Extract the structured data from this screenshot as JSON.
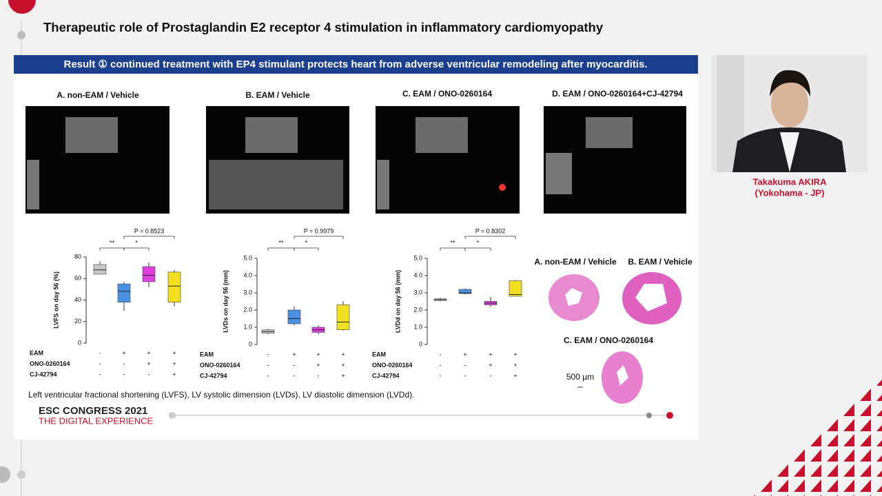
{
  "header": {
    "title": "Therapeutic role of Prostaglandin E2 receptor 4 stimulation in inflammatory cardiomyopathy"
  },
  "slide": {
    "banner": "Result ① continued treatment with EP4 stimulant protects heart from adverse ventricular remodeling after myocarditis.",
    "echo_labels": [
      "A. non-EAM / Vehicle",
      "B. EAM / Vehicle",
      "C. EAM / ONO-0260164",
      "D. EAM / ONO-0260164+CJ-42794"
    ],
    "histology_labels": [
      "A. non-EAM / Vehicle",
      "B. EAM / Vehicle",
      "C. EAM / ONO-0260164"
    ],
    "scale_bar": "500 µm",
    "footnote": "Left ventricular fractional shortening (LVFS), LV systolic dimension (LVDs), LV diastolic dimension (LVDd).",
    "congress": "ESC CONGRESS 2021",
    "congress_sub": "THE DIGITAL EXPERIENCE"
  },
  "speaker": {
    "name": "Takakuma AKIRA",
    "affiliation": "(Yokohama - JP)"
  },
  "chart_data": [
    {
      "type": "box",
      "y_label": "LVFS on day 56 (%)",
      "ylim": [
        0,
        80
      ],
      "yticks": [
        0,
        20,
        40,
        60,
        80
      ],
      "boxes": [
        {
          "color": "#c8c8c8",
          "min": 64,
          "q1": 64,
          "median": 68,
          "q3": 73,
          "max": 76
        },
        {
          "color": "#4a90e2",
          "min": 30,
          "q1": 38,
          "median": 48,
          "q3": 55,
          "max": 57
        },
        {
          "color": "#e040e0",
          "min": 52,
          "q1": 57,
          "median": 63,
          "q3": 71,
          "max": 75
        },
        {
          "color": "#f0e020",
          "min": 34,
          "q1": 38,
          "median": 53,
          "q3": 66,
          "max": 68
        }
      ],
      "annotations": [
        "**",
        "*",
        "P = 0.8523"
      ],
      "treatments": [
        {
          "name": "EAM",
          "marks": [
            "-",
            "+",
            "+",
            "+"
          ]
        },
        {
          "name": "ONO-0260164",
          "marks": [
            "-",
            "-",
            "+",
            "+"
          ]
        },
        {
          "name": "CJ-42794",
          "marks": [
            "-",
            "-",
            "-",
            "+"
          ]
        }
      ]
    },
    {
      "type": "box",
      "y_label": "LVDs on day 56 (mm)",
      "ylim": [
        0,
        5
      ],
      "yticks": [
        0,
        {
          "value": 1,
          "label": "1.0"
        },
        {
          "value": 2,
          "label": "2.0"
        },
        {
          "value": 3,
          "label": "3.0"
        },
        {
          "value": 4,
          "label": "4.0"
        },
        {
          "value": 5,
          "label": "5.0"
        }
      ],
      "boxes": [
        {
          "color": "#c8c8c8",
          "min": 0.6,
          "q1": 0.65,
          "median": 0.75,
          "q3": 0.85,
          "max": 0.9
        },
        {
          "color": "#4a90e2",
          "min": 1.1,
          "q1": 1.2,
          "median": 1.5,
          "q3": 2.0,
          "max": 2.2
        },
        {
          "color": "#e040e0",
          "min": 0.6,
          "q1": 0.7,
          "median": 0.85,
          "q3": 1.0,
          "max": 1.1
        },
        {
          "color": "#f0e020",
          "min": 0.8,
          "q1": 0.85,
          "median": 1.3,
          "q3": 2.3,
          "max": 2.5
        }
      ],
      "annotations": [
        "**",
        "*",
        "P = 0.9979"
      ],
      "treatments": [
        {
          "name": "EAM",
          "marks": [
            "-",
            "+",
            "+",
            "+"
          ]
        },
        {
          "name": "ONO-0260164",
          "marks": [
            "-",
            "-",
            "+",
            "+"
          ]
        },
        {
          "name": "CJ-42794",
          "marks": [
            "-",
            "-",
            "-",
            "+"
          ]
        }
      ]
    },
    {
      "type": "box",
      "y_label": "LVDd on day 56 (mm)",
      "ylim": [
        0,
        5
      ],
      "yticks": [
        0,
        {
          "value": 1,
          "label": "1.0"
        },
        {
          "value": 2,
          "label": "2.0"
        },
        {
          "value": 3,
          "label": "3.0"
        },
        {
          "value": 4,
          "label": "4.0"
        },
        {
          "value": 5,
          "label": "5.0"
        }
      ],
      "boxes": [
        {
          "color": "#c8c8c8",
          "min": 2.5,
          "q1": 2.55,
          "median": 2.6,
          "q3": 2.65,
          "max": 2.7
        },
        {
          "color": "#4a90e2",
          "min": 2.9,
          "q1": 2.95,
          "median": 3.0,
          "q3": 3.2,
          "max": 3.25
        },
        {
          "color": "#e040e0",
          "min": 2.2,
          "q1": 2.3,
          "median": 2.4,
          "q3": 2.5,
          "max": 2.75
        },
        {
          "color": "#f0e020",
          "min": 2.8,
          "q1": 2.8,
          "median": 2.9,
          "q3": 3.7,
          "max": 3.75
        }
      ],
      "annotations": [
        "**",
        "*",
        "P = 0.8302"
      ],
      "treatments": [
        {
          "name": "EAM",
          "marks": [
            "-",
            "+",
            "+",
            "+"
          ]
        },
        {
          "name": "ONO-0260164",
          "marks": [
            "-",
            "-",
            "+",
            "+"
          ]
        },
        {
          "name": "CJ-42794",
          "marks": [
            "-",
            "-",
            "-",
            "+"
          ]
        }
      ]
    }
  ]
}
